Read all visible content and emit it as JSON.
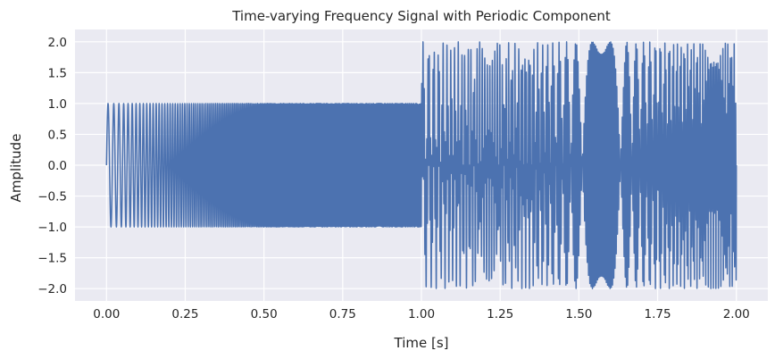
{
  "chart_data": {
    "type": "line",
    "title": "Time-varying Frequency Signal with Periodic Component",
    "xlabel": "Time [s]",
    "ylabel": "Amplitude",
    "xlim": [
      -0.1,
      2.1
    ],
    "ylim": [
      -2.2,
      2.2
    ],
    "grid": true,
    "background": "#eaeaf2",
    "line_color": "#4c72b0",
    "x_ticks": [
      0.0,
      0.25,
      0.5,
      0.75,
      1.0,
      1.25,
      1.5,
      1.75,
      2.0
    ],
    "x_tick_labels": [
      "0.00",
      "0.25",
      "0.50",
      "0.75",
      "1.00",
      "1.25",
      "1.50",
      "1.75",
      "2.00"
    ],
    "y_ticks": [
      2.0,
      1.5,
      1.0,
      0.5,
      0.0,
      -0.5,
      -1.0,
      -1.5,
      -2.0
    ],
    "y_tick_labels": [
      "2.0",
      "1.5",
      "1.0",
      "0.5",
      "0.0",
      "−0.5",
      "−1.0",
      "−1.5",
      "−2.0"
    ],
    "series": [
      {
        "x_range": [
          0.0,
          2.0
        ],
        "segments": [
          {
            "x": [
              0.0,
              1.0
            ],
            "shape": "chirp",
            "amplitude": 1.0,
            "freq_start_hz": 50,
            "freq_end_hz": 400
          },
          {
            "x": [
              1.0,
              2.0
            ],
            "shape": "chirp plus periodic component",
            "amplitude_max": 2.0
          }
        ]
      }
    ]
  }
}
